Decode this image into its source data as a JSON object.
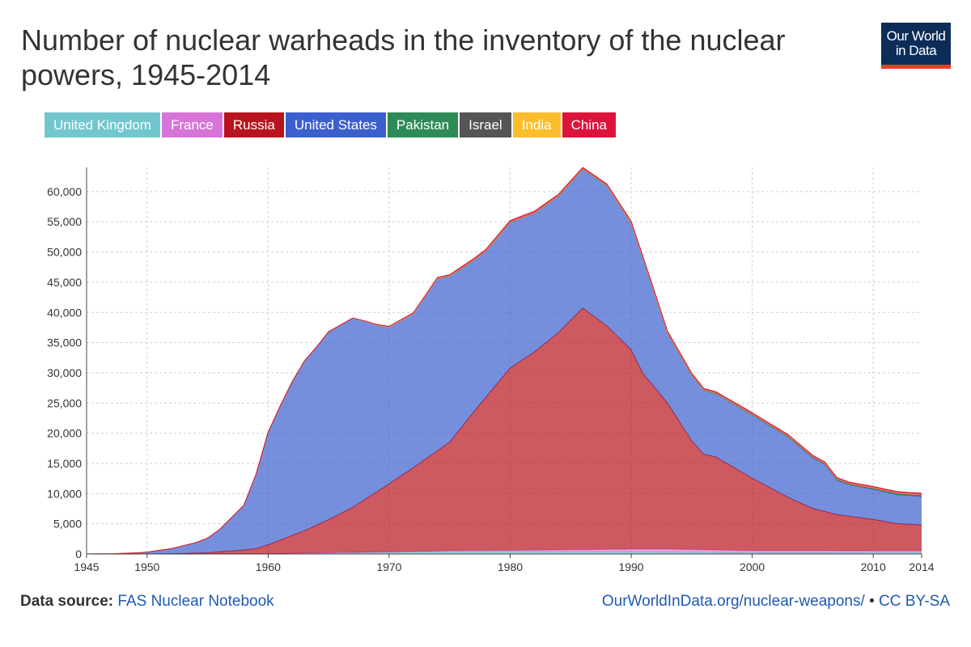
{
  "title": "Number of nuclear warheads in the inventory of the nuclear powers, 1945-2014",
  "logo": {
    "line1": "Our World",
    "line2": "in Data",
    "bg": "#0d2d59",
    "accent": "#e63f23"
  },
  "footer": {
    "source_label": "Data source:",
    "source_name": "FAS Nuclear Notebook",
    "url": "OurWorldInData.org/nuclear-weapons/",
    "separator": "•",
    "license": "CC BY-SA"
  },
  "chart_data": {
    "type": "area",
    "stacked": true,
    "grid": true,
    "xlim": [
      1945,
      2014
    ],
    "ylim": [
      0,
      64000
    ],
    "x_ticks": [
      1945,
      1950,
      1960,
      1970,
      1980,
      1990,
      2000,
      2010,
      2014
    ],
    "y_ticks": [
      0,
      5000,
      10000,
      15000,
      20000,
      25000,
      30000,
      35000,
      40000,
      45000,
      50000,
      55000,
      60000
    ],
    "y_tick_labels": [
      "0",
      "5,000",
      "10,000",
      "15,000",
      "20,000",
      "25,000",
      "30,000",
      "35,000",
      "40,000",
      "45,000",
      "50,000",
      "55,000",
      "60,000"
    ],
    "legend": [
      {
        "name": "United Kingdom",
        "color": "#72c7cf"
      },
      {
        "name": "France",
        "color": "#d774d8"
      },
      {
        "name": "Russia",
        "color": "#b8141d"
      },
      {
        "name": "United States",
        "color": "#3c5fce"
      },
      {
        "name": "Pakistan",
        "color": "#2e8a57"
      },
      {
        "name": "Israel",
        "color": "#555555"
      },
      {
        "name": "India",
        "color": "#fcbd2c"
      },
      {
        "name": "China",
        "color": "#dc143c"
      }
    ],
    "series": [
      {
        "name": "United Kingdom",
        "color": "#72c7cf",
        "points": [
          [
            1945,
            0
          ],
          [
            1952,
            0
          ],
          [
            1953,
            10
          ],
          [
            1955,
            20
          ],
          [
            1960,
            30
          ],
          [
            1963,
            150
          ],
          [
            1970,
            280
          ],
          [
            1975,
            350
          ],
          [
            1980,
            350
          ],
          [
            1985,
            300
          ],
          [
            1990,
            300
          ],
          [
            1995,
            250
          ],
          [
            2000,
            200
          ],
          [
            2005,
            200
          ],
          [
            2010,
            225
          ],
          [
            2014,
            225
          ]
        ]
      },
      {
        "name": "France",
        "color": "#d774d8",
        "points": [
          [
            1945,
            0
          ],
          [
            1963,
            0
          ],
          [
            1964,
            5
          ],
          [
            1970,
            40
          ],
          [
            1975,
            180
          ],
          [
            1980,
            250
          ],
          [
            1985,
            400
          ],
          [
            1990,
            500
          ],
          [
            1992,
            540
          ],
          [
            1995,
            500
          ],
          [
            2000,
            350
          ],
          [
            2005,
            350
          ],
          [
            2010,
            300
          ],
          [
            2014,
            300
          ]
        ]
      },
      {
        "name": "Russia",
        "color": "#b8141d",
        "points": [
          [
            1945,
            0
          ],
          [
            1949,
            1
          ],
          [
            1950,
            5
          ],
          [
            1952,
            50
          ],
          [
            1955,
            200
          ],
          [
            1958,
            650
          ],
          [
            1959,
            850
          ],
          [
            1960,
            1500
          ],
          [
            1963,
            3700
          ],
          [
            1965,
            5500
          ],
          [
            1967,
            7500
          ],
          [
            1970,
            11300
          ],
          [
            1972,
            13900
          ],
          [
            1975,
            18000
          ],
          [
            1976,
            20500
          ],
          [
            1977,
            23000
          ],
          [
            1980,
            30200
          ],
          [
            1982,
            32800
          ],
          [
            1984,
            36000
          ],
          [
            1986,
            40000
          ],
          [
            1988,
            37000
          ],
          [
            1990,
            33000
          ],
          [
            1991,
            29000
          ],
          [
            1993,
            24200
          ],
          [
            1995,
            18000
          ],
          [
            1996,
            15800
          ],
          [
            1997,
            15400
          ],
          [
            2000,
            12000
          ],
          [
            2003,
            8800
          ],
          [
            2005,
            7000
          ],
          [
            2007,
            6000
          ],
          [
            2010,
            5200
          ],
          [
            2012,
            4500
          ],
          [
            2014,
            4300
          ]
        ]
      },
      {
        "name": "United States",
        "color": "#3c5fce",
        "points": [
          [
            1945,
            6
          ],
          [
            1947,
            13
          ],
          [
            1949,
            170
          ],
          [
            1950,
            299
          ],
          [
            1952,
            840
          ],
          [
            1954,
            1700
          ],
          [
            1955,
            2400
          ],
          [
            1956,
            3700
          ],
          [
            1958,
            7400
          ],
          [
            1959,
            12300
          ],
          [
            1960,
            18600
          ],
          [
            1961,
            22200
          ],
          [
            1962,
            25500
          ],
          [
            1963,
            28100
          ],
          [
            1964,
            29500
          ],
          [
            1965,
            31100
          ],
          [
            1966,
            31200
          ],
          [
            1967,
            31300
          ],
          [
            1968,
            29500
          ],
          [
            1969,
            27600
          ],
          [
            1970,
            26000
          ],
          [
            1972,
            25500
          ],
          [
            1973,
            27000
          ],
          [
            1974,
            28500
          ],
          [
            1975,
            27500
          ],
          [
            1977,
            25100
          ],
          [
            1978,
            24200
          ],
          [
            1980,
            24100
          ],
          [
            1982,
            23000
          ],
          [
            1984,
            22600
          ],
          [
            1986,
            23000
          ],
          [
            1988,
            23200
          ],
          [
            1990,
            21000
          ],
          [
            1991,
            19000
          ],
          [
            1993,
            11600
          ],
          [
            1995,
            10900
          ],
          [
            1996,
            10600
          ],
          [
            1997,
            10500
          ],
          [
            2000,
            10500
          ],
          [
            2003,
            10000
          ],
          [
            2005,
            8400
          ],
          [
            2006,
            7800
          ],
          [
            2007,
            5700
          ],
          [
            2008,
            5200
          ],
          [
            2010,
            5000
          ],
          [
            2012,
            4800
          ],
          [
            2014,
            4700
          ]
        ]
      },
      {
        "name": "Pakistan",
        "color": "#2e8a57",
        "points": [
          [
            1945,
            0
          ],
          [
            1997,
            0
          ],
          [
            1998,
            5
          ],
          [
            2000,
            20
          ],
          [
            2005,
            50
          ],
          [
            2010,
            70
          ],
          [
            2014,
            110
          ]
        ]
      },
      {
        "name": "Israel",
        "color": "#555555",
        "points": [
          [
            1945,
            0
          ],
          [
            1966,
            0
          ],
          [
            1967,
            2
          ],
          [
            1970,
            10
          ],
          [
            1975,
            20
          ],
          [
            1980,
            30
          ],
          [
            1990,
            60
          ],
          [
            2000,
            80
          ],
          [
            2014,
            80
          ]
        ]
      },
      {
        "name": "India",
        "color": "#fcbd2c",
        "points": [
          [
            1945,
            0
          ],
          [
            1997,
            0
          ],
          [
            1998,
            5
          ],
          [
            2000,
            20
          ],
          [
            2005,
            40
          ],
          [
            2010,
            70
          ],
          [
            2014,
            100
          ]
        ]
      },
      {
        "name": "China",
        "color": "#dc143c",
        "points": [
          [
            1945,
            0
          ],
          [
            1963,
            0
          ],
          [
            1964,
            1
          ],
          [
            1966,
            10
          ],
          [
            1970,
            75
          ],
          [
            1975,
            185
          ],
          [
            1980,
            280
          ],
          [
            1985,
            240
          ],
          [
            1990,
            230
          ],
          [
            1995,
            234
          ],
          [
            2000,
            220
          ],
          [
            2005,
            210
          ],
          [
            2010,
            240
          ],
          [
            2014,
            250
          ]
        ]
      }
    ]
  }
}
